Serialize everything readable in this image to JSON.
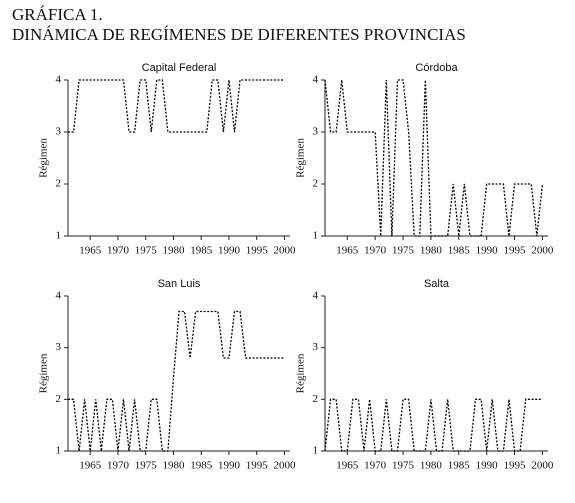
{
  "header": {
    "label": "GRÁFICA 1.",
    "title": "DINÁMICA DE REGÍMENES DE DIFERENTES PROVINCIAS"
  },
  "chart_data": [
    {
      "type": "line",
      "title": "Capital Federal",
      "y_label": "Régimen",
      "color": "#000000",
      "x": [
        1961,
        1962,
        1963,
        1964,
        1965,
        1966,
        1967,
        1968,
        1969,
        1970,
        1971,
        1972,
        1973,
        1974,
        1975,
        1976,
        1977,
        1978,
        1979,
        1980,
        1981,
        1982,
        1983,
        1984,
        1985,
        1986,
        1987,
        1988,
        1989,
        1990,
        1991,
        1992,
        1993,
        1994,
        1995,
        1996,
        1997,
        1998,
        1999,
        2000
      ],
      "values": [
        3,
        3,
        4,
        4,
        4,
        4,
        4,
        4,
        4,
        4,
        4,
        3,
        3,
        4,
        4,
        3,
        4,
        4,
        3,
        3,
        3,
        3,
        3,
        3,
        3,
        3,
        4,
        4,
        3,
        4,
        3,
        4,
        4,
        4,
        4,
        4,
        4,
        4,
        4,
        4
      ],
      "xlim": [
        1961,
        2001
      ],
      "xticks": [
        1965,
        1970,
        1975,
        1980,
        1985,
        1990,
        1995,
        2000
      ],
      "ylim": [
        1,
        4
      ],
      "yticks": [
        1,
        2,
        3,
        4
      ]
    },
    {
      "type": "line",
      "title": "Córdoba",
      "y_label": "Régimen",
      "color": "#000000",
      "x": [
        1961,
        1962,
        1963,
        1964,
        1965,
        1966,
        1967,
        1968,
        1969,
        1970,
        1971,
        1972,
        1973,
        1974,
        1975,
        1976,
        1977,
        1978,
        1979,
        1980,
        1981,
        1982,
        1983,
        1984,
        1985,
        1986,
        1987,
        1988,
        1989,
        1990,
        1991,
        1992,
        1993,
        1994,
        1995,
        1996,
        1997,
        1998,
        1999,
        2000
      ],
      "values": [
        4,
        3,
        3,
        4,
        3,
        3,
        3,
        3,
        3,
        3,
        1,
        4,
        1,
        4,
        4,
        3,
        1,
        1,
        4,
        1,
        1,
        1,
        1,
        2,
        1,
        2,
        1,
        1,
        1,
        2,
        2,
        2,
        2,
        1,
        2,
        2,
        2,
        2,
        1,
        2
      ],
      "xlim": [
        1961,
        2001
      ],
      "xticks": [
        1965,
        1970,
        1975,
        1980,
        1985,
        1990,
        1995,
        2000
      ],
      "ylim": [
        1,
        4
      ],
      "yticks": [
        1,
        2,
        3,
        4
      ]
    },
    {
      "type": "line",
      "title": "San Luis",
      "y_label": "Régimen",
      "color": "#000000",
      "x": [
        1961,
        1962,
        1963,
        1964,
        1965,
        1966,
        1967,
        1968,
        1969,
        1970,
        1971,
        1972,
        1973,
        1974,
        1975,
        1976,
        1977,
        1978,
        1979,
        1980,
        1981,
        1982,
        1983,
        1984,
        1985,
        1986,
        1987,
        1988,
        1989,
        1990,
        1991,
        1992,
        1993,
        1994,
        1995,
        1996,
        1997,
        1998,
        1999,
        2000
      ],
      "values": [
        2,
        2,
        1,
        2,
        1,
        2,
        1,
        2,
        2,
        1,
        2,
        1,
        2,
        1,
        1,
        2,
        2,
        1,
        1,
        2.4,
        3.7,
        3.7,
        2.8,
        3.7,
        3.7,
        3.7,
        3.7,
        3.7,
        2.8,
        2.8,
        3.7,
        3.7,
        2.8,
        2.8,
        2.8,
        2.8,
        2.8,
        2.8,
        2.8,
        2.8
      ],
      "xlim": [
        1961,
        2001
      ],
      "xticks": [
        1965,
        1970,
        1975,
        1980,
        1985,
        1990,
        1995,
        2000
      ],
      "ylim": [
        1,
        4
      ],
      "yticks": [
        1,
        2,
        3,
        4
      ]
    },
    {
      "type": "line",
      "title": "Salta",
      "y_label": "Régimen",
      "color": "#000000",
      "x": [
        1961,
        1962,
        1963,
        1964,
        1965,
        1966,
        1967,
        1968,
        1969,
        1970,
        1971,
        1972,
        1973,
        1974,
        1975,
        1976,
        1977,
        1978,
        1979,
        1980,
        1981,
        1982,
        1983,
        1984,
        1985,
        1986,
        1987,
        1988,
        1989,
        1990,
        1991,
        1992,
        1993,
        1994,
        1995,
        1996,
        1997,
        1998,
        1999,
        2000
      ],
      "values": [
        1,
        2,
        2,
        1,
        1,
        2,
        2,
        1,
        2,
        1,
        1,
        2,
        1,
        1,
        2,
        2,
        1,
        1,
        1,
        2,
        1,
        1,
        2,
        1,
        1,
        1,
        1,
        2,
        2,
        1,
        2,
        1,
        1,
        2,
        1,
        1,
        2,
        2,
        2,
        2
      ],
      "xlim": [
        1961,
        2001
      ],
      "xticks": [
        1965,
        1970,
        1975,
        1980,
        1985,
        1990,
        1995,
        2000
      ],
      "ylim": [
        1,
        4
      ],
      "yticks": [
        1,
        2,
        3,
        4
      ]
    }
  ]
}
